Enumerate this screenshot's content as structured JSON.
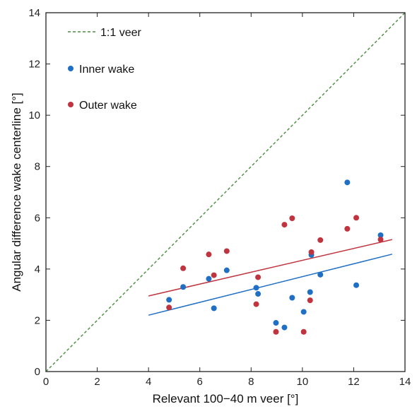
{
  "chart_data": {
    "type": "scatter",
    "xlabel": "Relevant 100−40 m veer [°]",
    "ylabel": "Angular difference wake centerline [°]",
    "xlim": [
      0,
      14
    ],
    "ylim": [
      0,
      14
    ],
    "xticks": [
      "0",
      "2",
      "4",
      "6",
      "8",
      "10",
      "12",
      "14"
    ],
    "yticks": [
      "0",
      "2",
      "4",
      "6",
      "8",
      "10",
      "12",
      "14"
    ],
    "grid": false,
    "legend_position": "top-left",
    "reference_line": {
      "name": "1:1 veer",
      "points": [
        [
          0,
          0
        ],
        [
          14,
          14
        ]
      ],
      "color": "#4a8c3f",
      "style": "dashed"
    },
    "series": [
      {
        "name": "Inner wake",
        "color": "#1f6fc5",
        "points": [
          [
            4.8,
            2.8
          ],
          [
            5.35,
            3.3
          ],
          [
            6.35,
            3.62
          ],
          [
            6.55,
            2.47
          ],
          [
            7.05,
            3.95
          ],
          [
            8.2,
            3.27
          ],
          [
            8.27,
            3.03
          ],
          [
            8.97,
            1.9
          ],
          [
            9.3,
            1.72
          ],
          [
            9.6,
            2.88
          ],
          [
            10.05,
            2.33
          ],
          [
            10.3,
            3.1
          ],
          [
            10.35,
            4.55
          ],
          [
            10.7,
            3.78
          ],
          [
            11.75,
            7.38
          ],
          [
            12.1,
            3.37
          ],
          [
            13.05,
            5.32
          ]
        ],
        "fit": [
          [
            4.0,
            2.2
          ],
          [
            13.5,
            4.58
          ]
        ]
      },
      {
        "name": "Outer wake",
        "color": "#c0343f",
        "points": [
          [
            4.8,
            2.5
          ],
          [
            5.35,
            4.03
          ],
          [
            6.35,
            4.57
          ],
          [
            6.55,
            3.76
          ],
          [
            7.05,
            4.7
          ],
          [
            8.2,
            2.63
          ],
          [
            8.27,
            3.68
          ],
          [
            8.97,
            1.55
          ],
          [
            9.3,
            5.73
          ],
          [
            9.6,
            5.98
          ],
          [
            10.05,
            1.55
          ],
          [
            10.3,
            2.78
          ],
          [
            10.35,
            4.66
          ],
          [
            10.7,
            5.13
          ],
          [
            11.75,
            5.57
          ],
          [
            12.1,
            6.0
          ],
          [
            13.05,
            5.15
          ]
        ],
        "fit": [
          [
            4.0,
            2.95
          ],
          [
            13.5,
            5.15
          ]
        ]
      }
    ]
  }
}
